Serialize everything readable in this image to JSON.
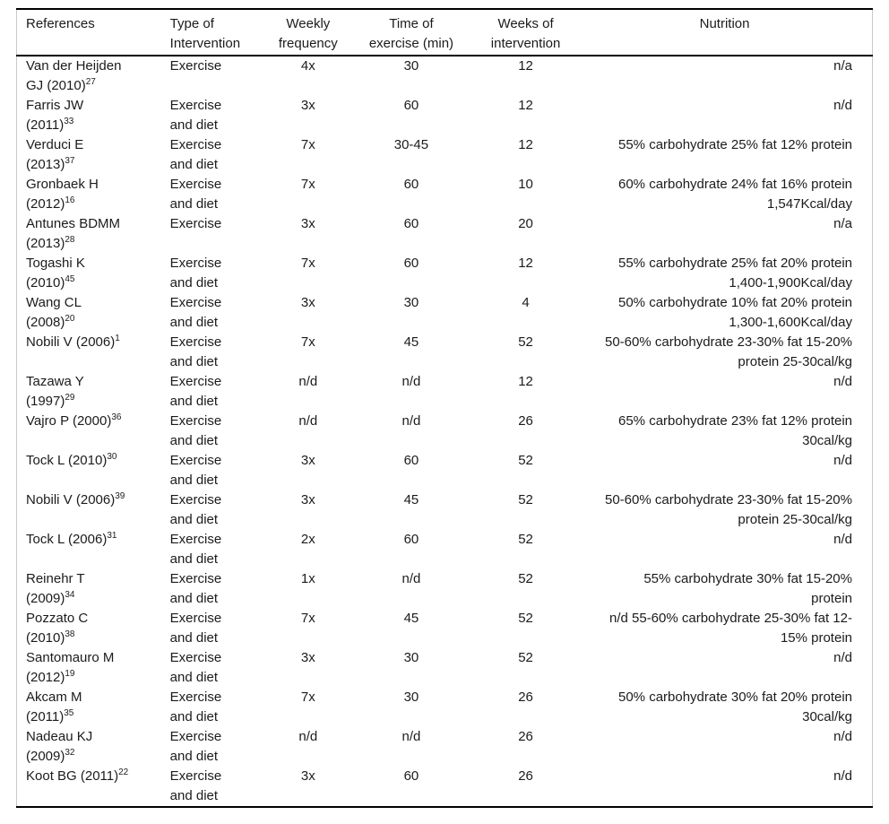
{
  "table": {
    "columns": [
      {
        "label": "References"
      },
      {
        "label": "Type of\nIntervention"
      },
      {
        "label": "Weekly\nfrequency"
      },
      {
        "label": "Time of\nexercise (min)"
      },
      {
        "label": "Weeks of\nintervention"
      },
      {
        "label": "Nutrition"
      }
    ],
    "rows": [
      {
        "ref": "Van der Heijden\nGJ (2010)",
        "sup": "27",
        "type": "Exercise",
        "freq": "4x",
        "time": "30",
        "weeks": "12",
        "nutrition": "n/a"
      },
      {
        "ref": "Farris JW\n(2011)",
        "sup": "33",
        "type": "Exercise\nand diet",
        "freq": "3x",
        "time": "60",
        "weeks": "12",
        "nutrition": "n/d"
      },
      {
        "ref": "Verduci E\n(2013)",
        "sup": "37",
        "type": "Exercise\nand diet",
        "freq": "7x",
        "time": "30-45",
        "weeks": "12",
        "nutrition": "55% carbohydrate 25% fat 12% protein"
      },
      {
        "ref": "Gronbaek H\n(2012)",
        "sup": "16",
        "type": "Exercise\nand diet",
        "freq": "7x",
        "time": "60",
        "weeks": "10",
        "nutrition": "60% carbohydrate 24% fat 16% protein\n1,547Kcal/day"
      },
      {
        "ref": "Antunes BDMM\n(2013)",
        "sup": "28",
        "type": "Exercise",
        "freq": "3x",
        "time": "60",
        "weeks": "20",
        "nutrition": "n/a"
      },
      {
        "ref": "Togashi K\n(2010)",
        "sup": "45",
        "type": "Exercise\nand diet",
        "freq": "7x",
        "time": "60",
        "weeks": "12",
        "nutrition": "55% carbohydrate 25% fat 20% protein\n1,400-1,900Kcal/day"
      },
      {
        "ref": "Wang CL\n(2008)",
        "sup": "20",
        "type": "Exercise\nand diet",
        "freq": "3x",
        "time": "30",
        "weeks": "4",
        "nutrition": "50% carbohydrate 10% fat 20% protein\n1,300-1,600Kcal/day"
      },
      {
        "ref": "Nobili V (2006)",
        "sup": "1",
        "type": "Exercise\nand diet",
        "freq": "7x",
        "time": "45",
        "weeks": "52",
        "nutrition": "50-60% carbohydrate 23-30% fat 15-20%\nprotein 25-30cal/kg"
      },
      {
        "ref": "Tazawa Y\n(1997)",
        "sup": "29",
        "type": "Exercise\nand diet",
        "freq": "n/d",
        "time": "n/d",
        "weeks": "12",
        "nutrition": "n/d"
      },
      {
        "ref": "Vajro P (2000)",
        "sup": "36",
        "type": "Exercise\nand diet",
        "freq": "n/d",
        "time": "n/d",
        "weeks": "26",
        "nutrition": "65% carbohydrate 23% fat 12% protein\n30cal/kg"
      },
      {
        "ref": "Tock L (2010)",
        "sup": "30",
        "type": "Exercise\nand diet",
        "freq": "3x",
        "time": "60",
        "weeks": "52",
        "nutrition": "n/d"
      },
      {
        "ref": "Nobili V (2006)",
        "sup": "39",
        "type": "Exercise\nand diet",
        "freq": "3x",
        "time": "45",
        "weeks": "52",
        "nutrition": "50-60% carbohydrate 23-30% fat 15-20%\nprotein 25-30cal/kg"
      },
      {
        "ref": "Tock L (2006)",
        "sup": "31",
        "type": "Exercise\nand diet",
        "freq": "2x",
        "time": "60",
        "weeks": "52",
        "nutrition": "n/d"
      },
      {
        "ref": "Reinehr T\n(2009)",
        "sup": "34",
        "type": "Exercise\nand diet",
        "freq": "1x",
        "time": "n/d",
        "weeks": "52",
        "nutrition": "55% carbohydrate 30% fat 15-20%\nprotein"
      },
      {
        "ref": "Pozzato C\n(2010)",
        "sup": "38",
        "type": "Exercise\nand diet",
        "freq": "7x",
        "time": "45",
        "weeks": "52",
        "nutrition": "n/d 55-60% carbohydrate 25-30% fat 12-\n15% protein"
      },
      {
        "ref": "Santomauro M\n(2012)",
        "sup": "19",
        "type": "Exercise\nand diet",
        "freq": "3x",
        "time": "30",
        "weeks": "52",
        "nutrition": "n/d"
      },
      {
        "ref": "Akcam M\n(2011)",
        "sup": "35",
        "type": "Exercise\nand diet",
        "freq": "7x",
        "time": "30",
        "weeks": "26",
        "nutrition": "50% carbohydrate 30% fat 20% protein\n30cal/kg"
      },
      {
        "ref": "Nadeau KJ\n(2009)",
        "sup": "32",
        "type": "Exercise\nand diet",
        "freq": "n/d",
        "time": "n/d",
        "weeks": "26",
        "nutrition": "n/d"
      },
      {
        "ref": "Koot BG (2011)",
        "sup": "22",
        "type": "Exercise\nand diet",
        "freq": "3x",
        "time": "60",
        "weeks": "26",
        "nutrition": "n/d"
      }
    ]
  }
}
